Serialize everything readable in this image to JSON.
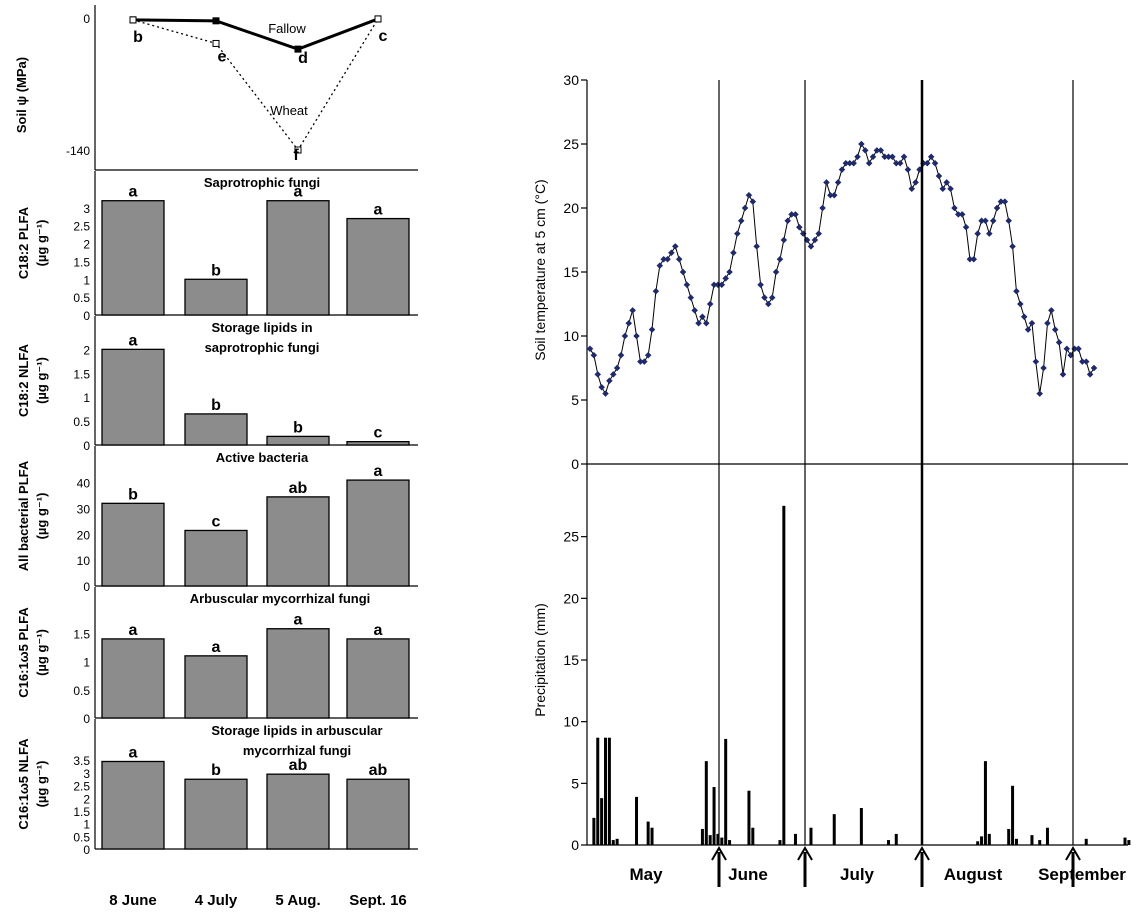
{
  "chart_data": [
    {
      "type": "line",
      "ylabel": "Soil ψ (MPa)",
      "yticks": [
        "0",
        "-140"
      ],
      "ylim": [
        -140,
        0
      ],
      "categories": [
        "8 June",
        "4 July",
        "5 Aug.",
        "Sept. 16"
      ],
      "series": [
        {
          "name": "Fallow",
          "values": [
            -2,
            -3,
            -33,
            -1
          ],
          "letters": [
            "b",
            "",
            "d",
            "c"
          ],
          "style": "solid"
        },
        {
          "name": "Wheat",
          "values": [
            -2,
            -27,
            -140,
            -1
          ],
          "letters": [
            "",
            "e",
            "f",
            ""
          ],
          "style": "dotted"
        }
      ]
    },
    {
      "type": "bar",
      "title": "Saprotrophic fungi",
      "ylabel_line1": "C18:2 PLFA",
      "ylabel_line2": "(µg g⁻¹)",
      "yticks": [
        "0",
        "0.5",
        "1",
        "1.5",
        "2",
        "2.5",
        "3"
      ],
      "ylim": [
        0,
        3.5
      ],
      "categories": [
        "8 June",
        "4 July",
        "5 Aug.",
        "Sept. 16"
      ],
      "values": [
        3.2,
        1.0,
        3.2,
        2.7
      ],
      "letters": [
        "a",
        "b",
        "a",
        "a"
      ]
    },
    {
      "type": "bar",
      "title": "Storage lipids in saprotrophic fungi",
      "title_lines": [
        "Storage lipids in",
        "saprotrophic fungi"
      ],
      "ylabel_line1": "C18:2 NLFA",
      "ylabel_line2": "(µg g⁻¹)",
      "yticks": [
        "0",
        "0.5",
        "1",
        "1.5",
        "2"
      ],
      "ylim": [
        0,
        2.3
      ],
      "categories": [
        "8 June",
        "4 July",
        "5 Aug.",
        "Sept. 16"
      ],
      "values": [
        2.0,
        0.65,
        0.18,
        0.07
      ],
      "letters": [
        "a",
        "b",
        "b",
        "c"
      ]
    },
    {
      "type": "bar",
      "title": "Active bacteria",
      "ylabel_line1": "All bacterial PLFA",
      "ylabel_line2": "(µg g⁻¹)",
      "yticks": [
        "0",
        "10",
        "20",
        "30",
        "40"
      ],
      "ylim": [
        0,
        48
      ],
      "categories": [
        "8 June",
        "4 July",
        "5 Aug.",
        "Sept. 16"
      ],
      "values": [
        32,
        21.5,
        34.5,
        41
      ],
      "letters": [
        "b",
        "c",
        "ab",
        "a"
      ]
    },
    {
      "type": "bar",
      "title": "Arbuscular mycorrhizal fungi",
      "ylabel_line1": "C16:1ω5 PLFA",
      "ylabel_line2": "(µg g⁻¹)",
      "yticks": [
        "0",
        "0.5",
        "1",
        "1.5"
      ],
      "ylim": [
        0,
        2.0
      ],
      "categories": [
        "8 June",
        "4 July",
        "5 Aug.",
        "Sept. 16"
      ],
      "values": [
        1.4,
        1.1,
        1.58,
        1.4
      ],
      "letters": [
        "a",
        "a",
        "a",
        "a"
      ]
    },
    {
      "type": "bar",
      "title": "Storage lipids in arbuscular mycorrhizal fungi",
      "title_lines": [
        "Storage lipids in arbuscular",
        "mycorrhizal fungi"
      ],
      "ylabel_line1": "C16:1ω5 NLFA",
      "ylabel_line2": "(µg g⁻¹)",
      "yticks": [
        "0",
        "0.5",
        "1",
        "1.5",
        "2",
        "2.5",
        "3",
        "3.5"
      ],
      "ylim": [
        0,
        4.1
      ],
      "categories": [
        "8 June",
        "4 July",
        "5 Aug.",
        "Sept. 16"
      ],
      "values": [
        3.45,
        2.75,
        2.95,
        2.75
      ],
      "letters": [
        "a",
        "b",
        "ab",
        "ab"
      ]
    },
    {
      "type": "line",
      "ylabel": "Soil temperature at 5 cm (°C)",
      "yticks": [
        "0",
        "5",
        "10",
        "15",
        "20",
        "25",
        "30"
      ],
      "ylim": [
        0,
        30
      ],
      "x_start": "2002-05-01",
      "values": [
        9.0,
        8.5,
        7.0,
        6.0,
        5.5,
        6.5,
        7.0,
        7.5,
        8.5,
        10.0,
        11.0,
        12.0,
        10.0,
        8.0,
        8.0,
        8.5,
        10.5,
        13.5,
        15.5,
        16.0,
        16.0,
        16.5,
        17.0,
        16.0,
        15.0,
        14.0,
        13.0,
        12.0,
        11.0,
        11.5,
        11.0,
        12.5,
        14.0,
        14.0,
        14.0,
        14.5,
        15.0,
        16.5,
        18.0,
        19.0,
        20.0,
        21.0,
        20.5,
        17.0,
        14.0,
        13.0,
        12.5,
        13.0,
        15.0,
        16.0,
        17.5,
        19.0,
        19.5,
        19.5,
        18.5,
        18.0,
        17.5,
        17.0,
        17.5,
        18.0,
        20.0,
        22.0,
        21.0,
        21.0,
        22.0,
        23.0,
        23.5,
        23.5,
        23.5,
        24.0,
        25.0,
        24.5,
        23.5,
        24.0,
        24.5,
        24.5,
        24.0,
        24.0,
        24.0,
        23.5,
        23.5,
        24.0,
        23.0,
        21.5,
        22.0,
        23.0,
        23.5,
        23.5,
        24.0,
        23.5,
        22.5,
        21.5,
        22.0,
        21.5,
        20.0,
        19.5,
        19.5,
        18.5,
        16.0,
        16.0,
        18.0,
        19.0,
        19.0,
        18.0,
        19.0,
        20.0,
        20.5,
        20.5,
        19.0,
        17.0,
        13.5,
        12.5,
        11.5,
        10.5,
        11.0,
        8.0,
        5.5,
        7.5,
        11.0,
        12.0,
        10.5,
        9.5,
        7.0,
        9.0,
        8.5,
        9.0,
        9.0,
        8.0,
        8.0,
        7.0,
        7.5
      ],
      "sampling_arrows": [
        "8 June",
        "4 July",
        "5 Aug.",
        "Sept. 16"
      ]
    },
    {
      "type": "bar",
      "ylabel": "Precipitation (mm)",
      "yticks": [
        "0",
        "5",
        "10",
        "15",
        "20",
        "25"
      ],
      "ylim": [
        0,
        30
      ],
      "x_labels": [
        "May",
        "June",
        "July",
        "August",
        "September"
      ],
      "x_start": "2002-05-01",
      "days": [
        1,
        2,
        3,
        4,
        5,
        6,
        7,
        12,
        15,
        16,
        29,
        30,
        31,
        32,
        33,
        34,
        35,
        36,
        41,
        42,
        49,
        50,
        53,
        57,
        63,
        70,
        77,
        79,
        100,
        101,
        102,
        103,
        108,
        109,
        110,
        114,
        116,
        118,
        128,
        138,
        139,
        152,
        153,
        154,
        155,
        156,
        157,
        158,
        159,
        160,
        161,
        162,
        163,
        164
      ],
      "values": [
        2.2,
        8.7,
        3.8,
        8.7,
        8.7,
        0.4,
        0.5,
        3.9,
        1.9,
        1.4,
        1.3,
        6.8,
        0.8,
        4.7,
        0.9,
        0.6,
        8.6,
        0.4,
        4.4,
        1.4,
        0.4,
        27.5,
        0.9,
        1.4,
        2.5,
        3.0,
        0.4,
        0.9,
        0.3,
        0.7,
        6.8,
        0.9,
        1.3,
        4.8,
        0.5,
        0.8,
        0.4,
        1.4,
        0.5,
        0.6,
        0.4,
        7.7,
        6.3,
        5.7,
        0.4,
        0.6,
        4.6,
        1.0,
        0.4,
        7.2,
        6.4,
        0.7,
        1.0,
        0.8
      ]
    }
  ],
  "top_line_labels": [
    "Fallow",
    "Wheat"
  ]
}
